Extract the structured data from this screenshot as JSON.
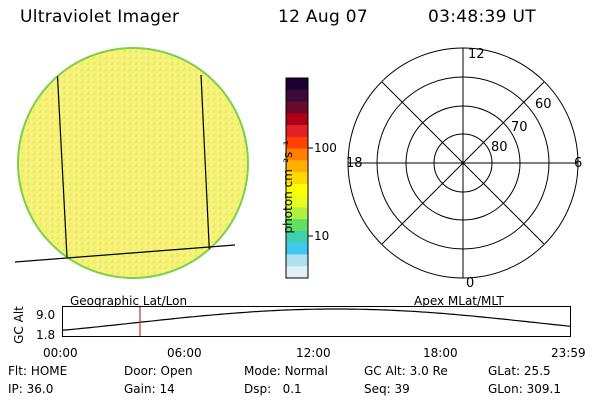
{
  "header": {
    "instrument": "Ultraviolet Imager",
    "date": "12 Aug 07",
    "time": "03:48:39 UT"
  },
  "colorbar": {
    "unit_label": "photon cm⁻²s⁻¹",
    "ticks": [
      "100",
      "10"
    ],
    "stops": [
      "#1a0030",
      "#3a0a3a",
      "#6a0a2a",
      "#b00018",
      "#e0202a",
      "#ff4000",
      "#ff8000",
      "#ffb000",
      "#ffd800",
      "#ffff00",
      "#e8ff20",
      "#b0f040",
      "#60e060",
      "#40d0b0",
      "#40c8f0",
      "#b0e0f0",
      "#e0f0f5"
    ]
  },
  "globe": {
    "label": "Geographic Lat/Lon",
    "fill_color": "#f4f078",
    "edge_color": "#7ad04a"
  },
  "polar": {
    "label": "Apex MLat/MLT",
    "mlt_labels": {
      "top": "12",
      "bottom": "0",
      "left": "18",
      "right": "6"
    },
    "lat_labels": [
      "60",
      "70",
      "80"
    ]
  },
  "timeline": {
    "axis_label": "GC Alt",
    "y_ticks": [
      "9.0",
      "1.8"
    ],
    "x_ticks": [
      "00:00",
      "06:00",
      "12:00",
      "18:00",
      "23:59"
    ],
    "marker_color": "#c03030"
  },
  "info": {
    "row1": [
      {
        "key": "Flt:",
        "val": "HOME"
      },
      {
        "key": "Door:",
        "val": "Open"
      },
      {
        "key": "Mode:",
        "val": "Normal"
      },
      {
        "key": "GC Alt:",
        "val": "3.0 Re"
      },
      {
        "key": "GLat:",
        "val": "25.5"
      }
    ],
    "row2": [
      {
        "key": "IP:",
        "val": "36.0"
      },
      {
        "key": "Gain:",
        "val": "14"
      },
      {
        "key": "Dsp:",
        "val": "0.1"
      },
      {
        "key": "Seq:",
        "val": "39"
      },
      {
        "key": "GLon:",
        "val": "309.1"
      }
    ]
  }
}
